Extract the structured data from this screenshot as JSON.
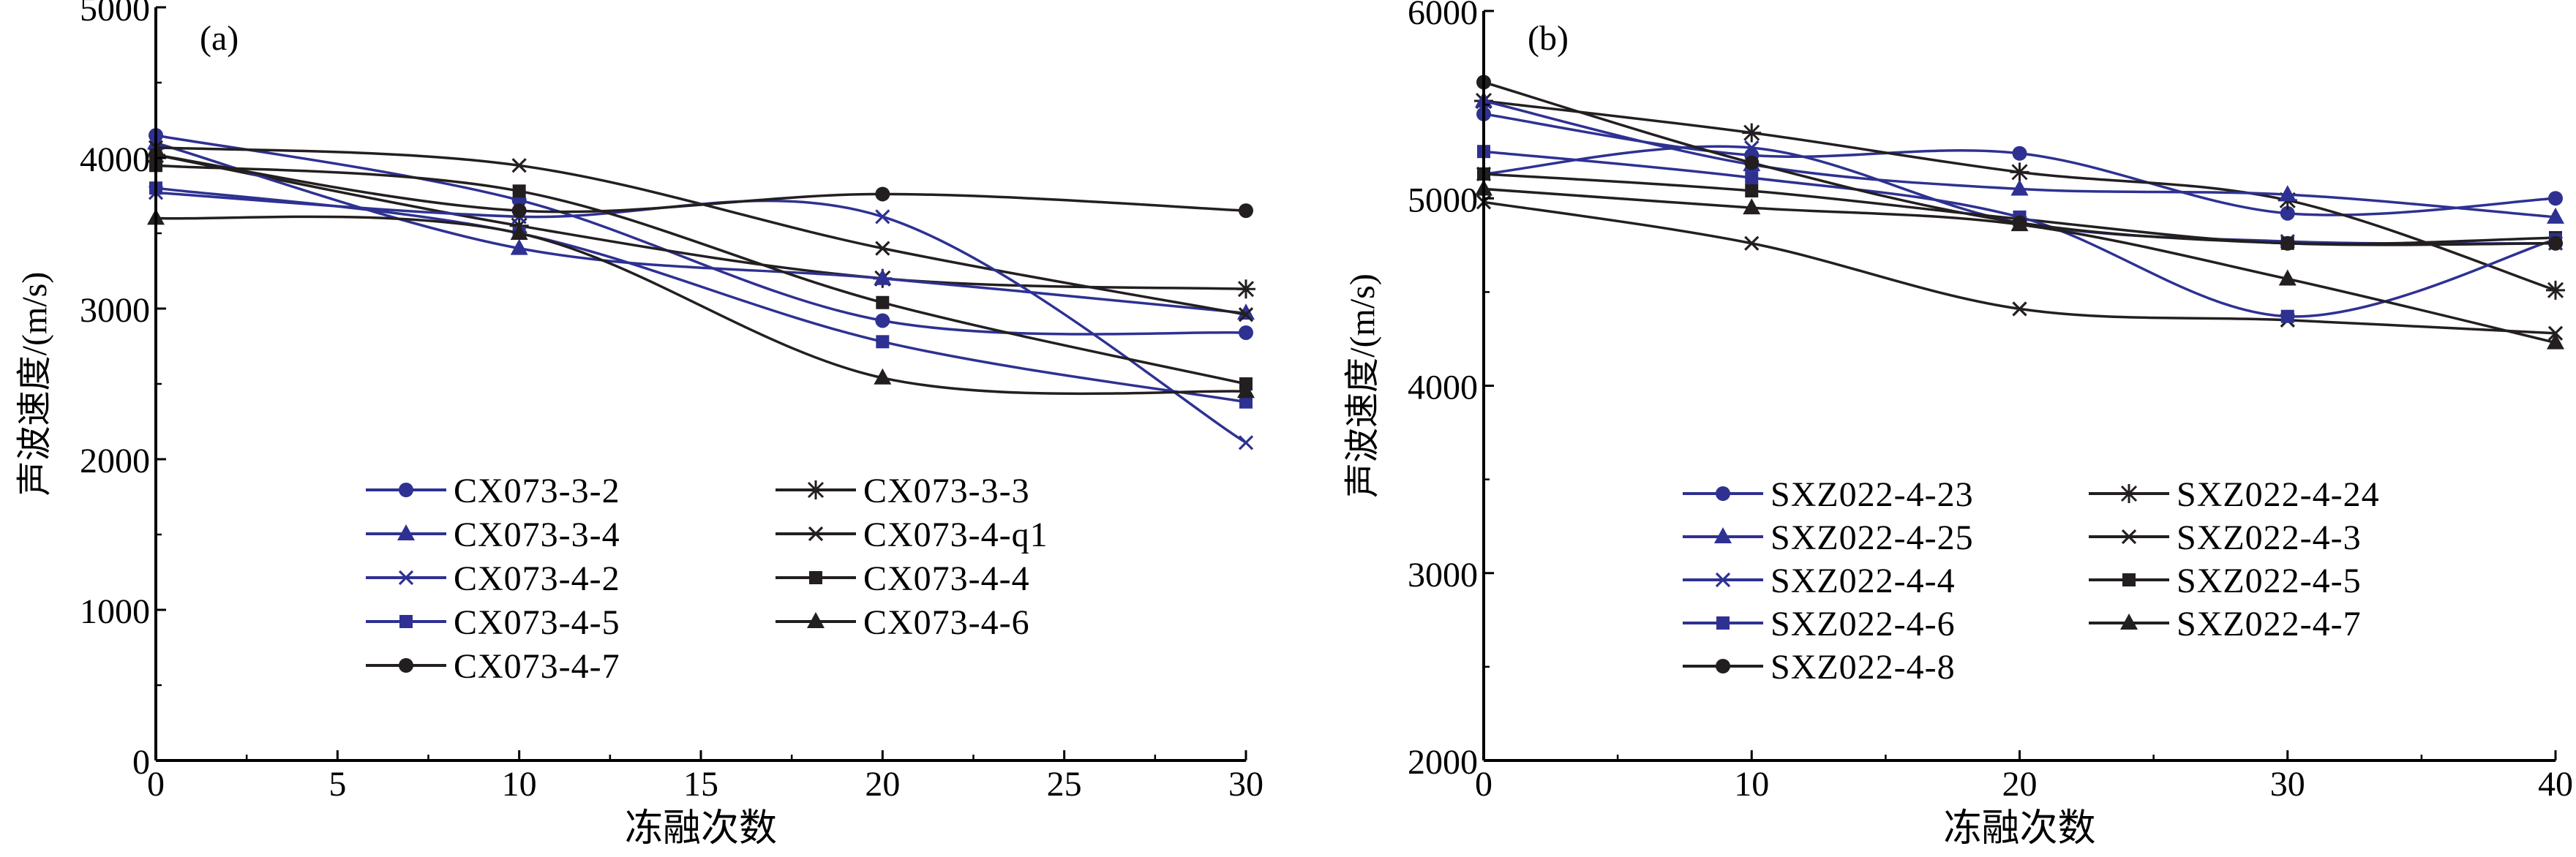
{
  "chart_data": [
    {
      "type": "line",
      "panel_label": "(a)",
      "xlabel": "冻融次数",
      "ylabel": "声波速度/(m/s)",
      "xlim": [
        0,
        30
      ],
      "ylim": [
        0,
        5000
      ],
      "xticks": [
        "0",
        "5",
        "10",
        "15",
        "20",
        "25",
        "30"
      ],
      "yticks": [
        "0",
        "1000",
        "2000",
        "3000",
        "4000",
        "5000"
      ],
      "grid": false,
      "legend_position": "bottom-left",
      "x": [
        0,
        10,
        20,
        30
      ],
      "series": [
        {
          "name": "CX073-3-2",
          "values": [
            4150,
            3720,
            2920,
            2840
          ],
          "color": "#2e3192",
          "marker": "circle"
        },
        {
          "name": "CX073-3-3",
          "values": [
            4020,
            3550,
            3200,
            3130
          ],
          "color": "#231f20",
          "marker": "asterisk"
        },
        {
          "name": "CX073-3-4",
          "values": [
            4100,
            3400,
            3200,
            2970
          ],
          "color": "#2e3192",
          "marker": "triangle"
        },
        {
          "name": "CX073-4-q1",
          "values": [
            4070,
            3950,
            3400,
            2960
          ],
          "color": "#231f20",
          "marker": "x"
        },
        {
          "name": "CX073-4-2",
          "values": [
            3770,
            3610,
            3610,
            2110
          ],
          "color": "#2e3192",
          "marker": "x"
        },
        {
          "name": "CX073-4-4",
          "values": [
            3950,
            3780,
            3040,
            2500
          ],
          "color": "#231f20",
          "marker": "square"
        },
        {
          "name": "CX073-4-5",
          "values": [
            3800,
            3500,
            2780,
            2380
          ],
          "color": "#2e3192",
          "marker": "square"
        },
        {
          "name": "CX073-4-6",
          "values": [
            3600,
            3500,
            2540,
            2450
          ],
          "color": "#231f20",
          "marker": "triangle"
        },
        {
          "name": "CX073-4-7",
          "values": [
            4020,
            3650,
            3760,
            3650
          ],
          "color": "#231f20",
          "marker": "circle"
        }
      ]
    },
    {
      "type": "line",
      "panel_label": "(b)",
      "xlabel": "冻融次数",
      "ylabel": "声波速度/(m/s)",
      "xlim": [
        0,
        40
      ],
      "ylim": [
        2000,
        6000
      ],
      "xticks": [
        "0",
        "10",
        "20",
        "30",
        "40"
      ],
      "yticks": [
        "2000",
        "3000",
        "4000",
        "5000",
        "6000"
      ],
      "grid": false,
      "legend_position": "bottom-left",
      "x": [
        0,
        10,
        20,
        30,
        40
      ],
      "series": [
        {
          "name": "SXZ022-4-23",
          "values": [
            5450,
            5230,
            5240,
            4920,
            5000
          ],
          "color": "#2e3192",
          "marker": "circle"
        },
        {
          "name": "SXZ022-4-24",
          "values": [
            5520,
            5350,
            5140,
            4990,
            4510
          ],
          "color": "#231f20",
          "marker": "asterisk"
        },
        {
          "name": "SXZ022-4-25",
          "values": [
            5520,
            5180,
            5050,
            5020,
            4900
          ],
          "color": "#2e3192",
          "marker": "triangle"
        },
        {
          "name": "SXZ022-4-3",
          "values": [
            4980,
            4760,
            4410,
            4350,
            4280
          ],
          "color": "#231f20",
          "marker": "x"
        },
        {
          "name": "SXZ022-4-4",
          "values": [
            5130,
            5270,
            4870,
            4770,
            4760
          ],
          "color": "#2e3192",
          "marker": "x"
        },
        {
          "name": "SXZ022-4-5",
          "values": [
            5130,
            5040,
            4890,
            4760,
            4790
          ],
          "color": "#231f20",
          "marker": "square"
        },
        {
          "name": "SXZ022-4-6",
          "values": [
            5250,
            5110,
            4900,
            4370,
            4780
          ],
          "color": "#2e3192",
          "marker": "square"
        },
        {
          "name": "SXZ022-4-7",
          "values": [
            5050,
            4950,
            4860,
            4570,
            4230
          ],
          "color": "#231f20",
          "marker": "triangle"
        },
        {
          "name": "SXZ022-4-8",
          "values": [
            5620,
            5190,
            4870,
            4760,
            4760
          ],
          "color": "#231f20",
          "marker": "circle"
        }
      ]
    }
  ]
}
